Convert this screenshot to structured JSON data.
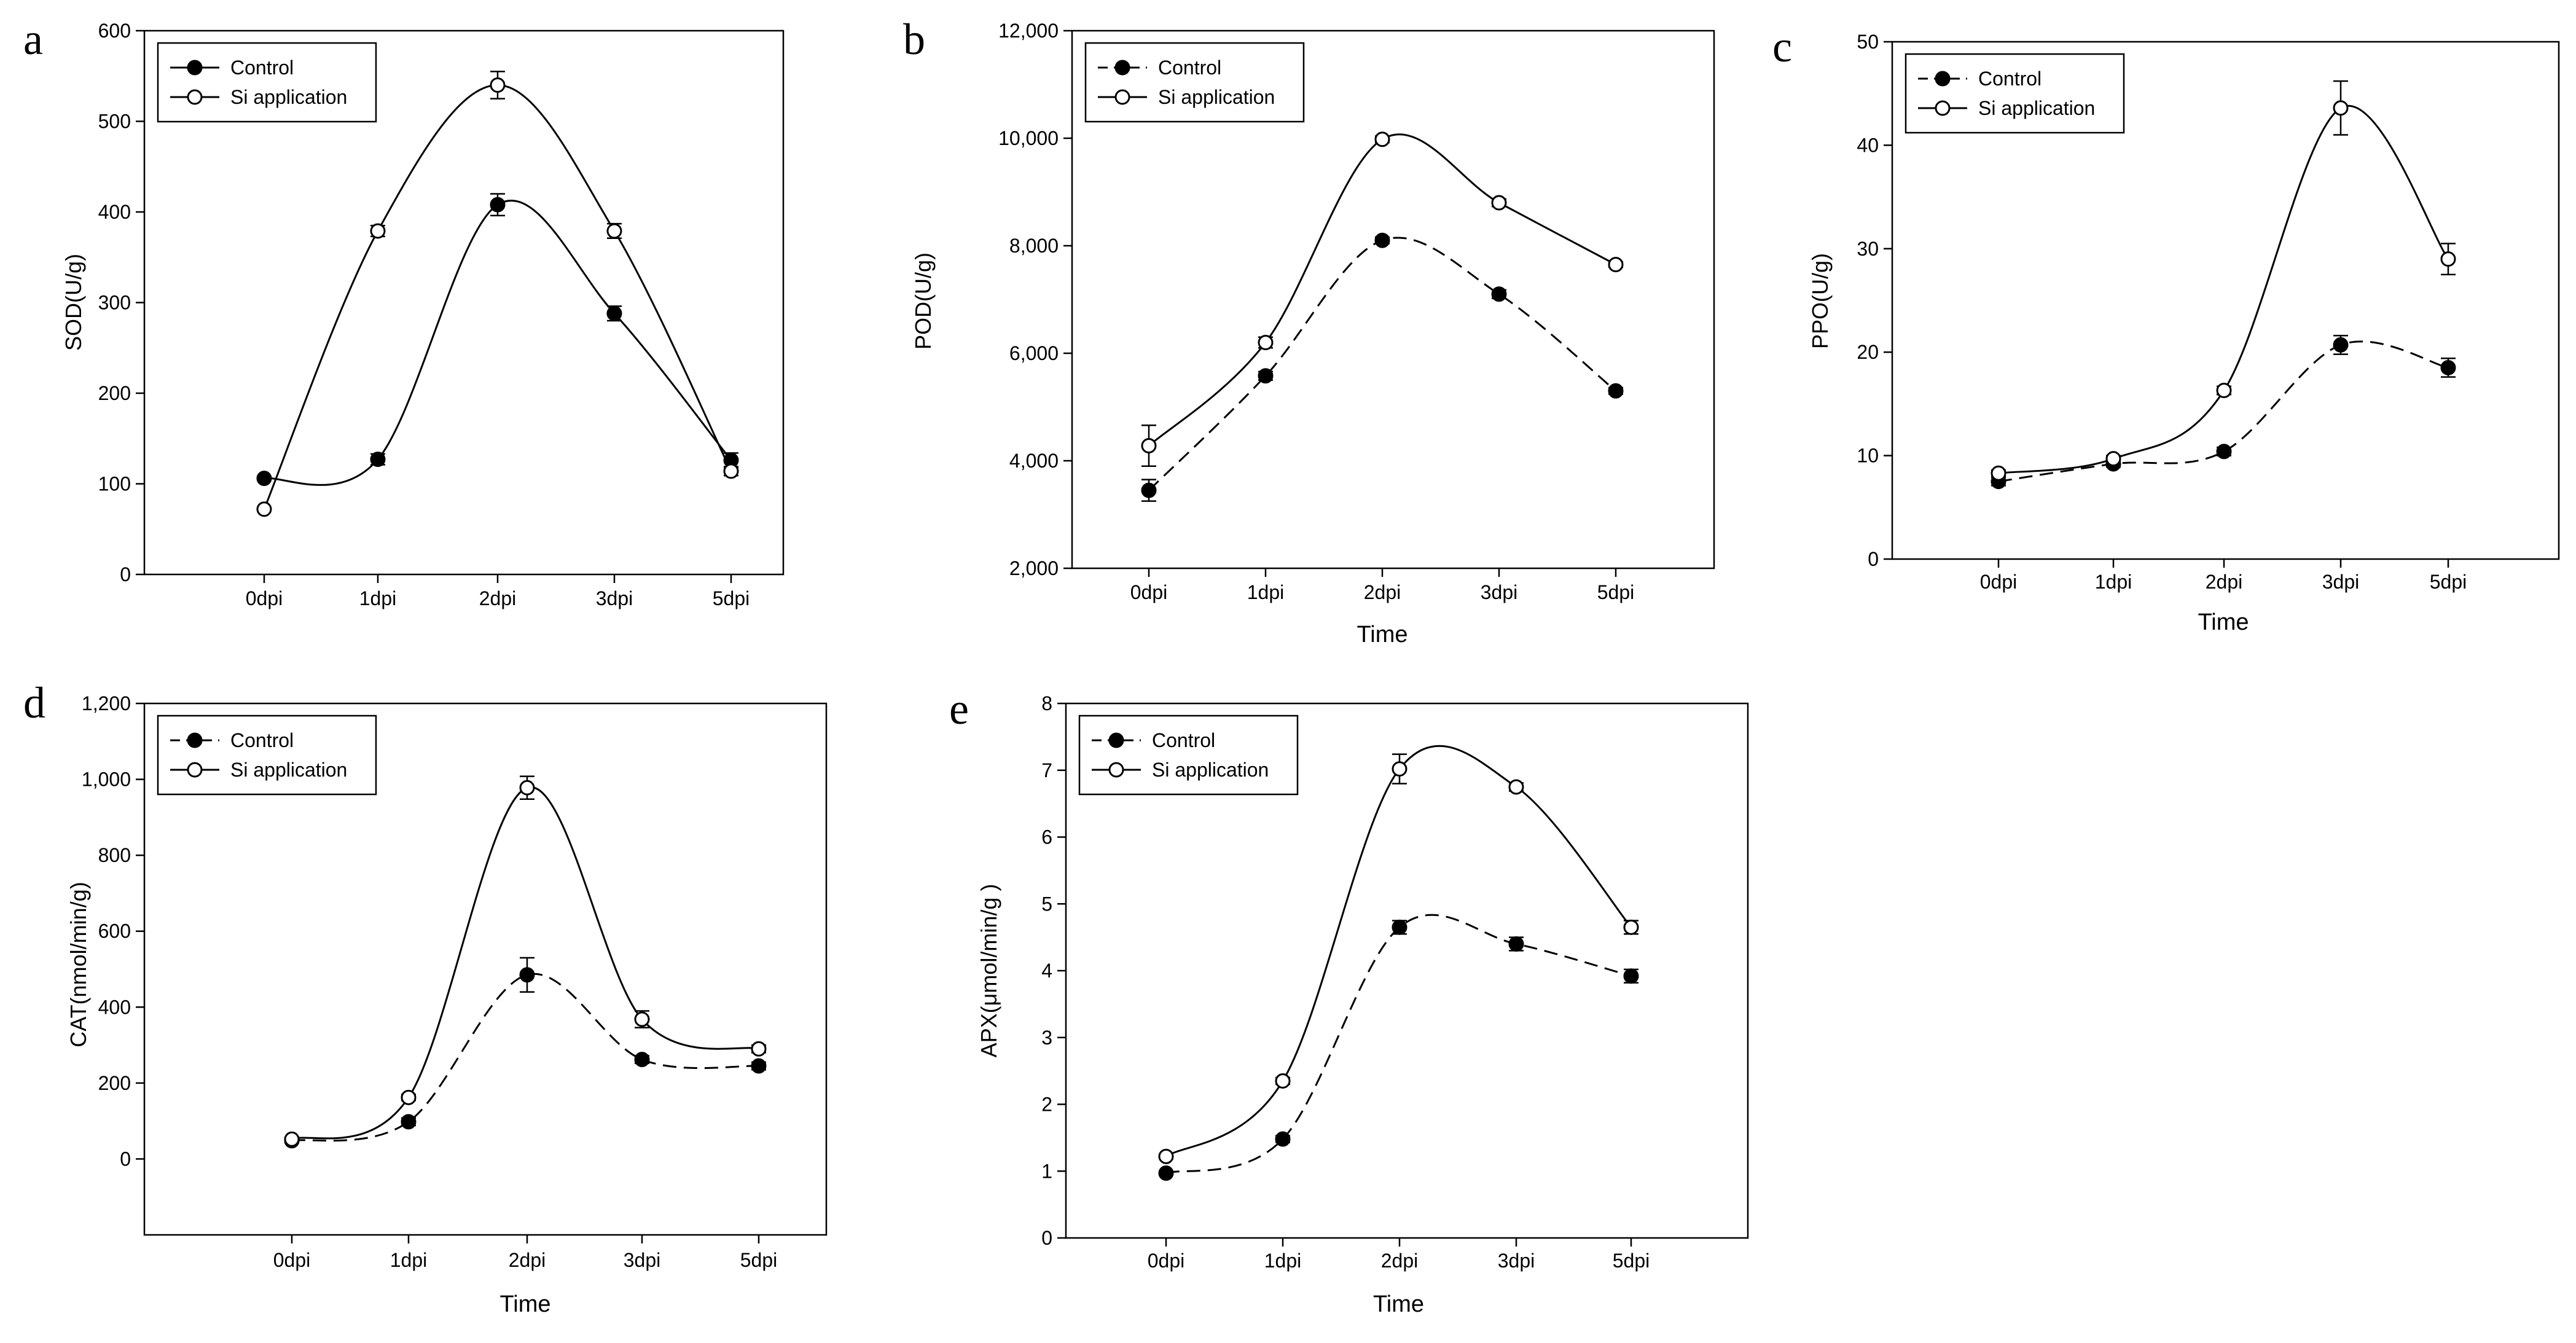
{
  "figure": {
    "background": "#ffffff",
    "ink_color": "#000000"
  },
  "legend": {
    "control_label": "Control",
    "si_label": "Si application"
  },
  "chart_data": [
    {
      "panel": "a",
      "type": "line",
      "title": "",
      "xlabel": "",
      "ylabel": "SOD(U/g)",
      "ylim": [
        0,
        600
      ],
      "yticks": [
        "0",
        "100",
        "200",
        "300",
        "400",
        "500",
        "600"
      ],
      "categories": [
        "0dpi",
        "1dpi",
        "2dpi",
        "3dpi",
        "5dpi"
      ],
      "legend_position": "top-left",
      "series": [
        {
          "name": "Control",
          "marker": "filled-circle",
          "line": "solid",
          "values": [
            106,
            127,
            408,
            288,
            126
          ],
          "errors": [
            0,
            6,
            12,
            8,
            8
          ]
        },
        {
          "name": "Si application",
          "marker": "open-circle",
          "line": "solid",
          "values": [
            72,
            379,
            540,
            379,
            114
          ],
          "errors": [
            0,
            6,
            15,
            8,
            5
          ]
        }
      ]
    },
    {
      "panel": "b",
      "type": "line",
      "title": "",
      "xlabel": "Time",
      "ylabel": "POD(U/g)",
      "ylim": [
        2000,
        12000
      ],
      "yticks": [
        "2,000",
        "4,000",
        "6,000",
        "8,000",
        "10,000",
        "12,000"
      ],
      "categories": [
        "0dpi",
        "1dpi",
        "2dpi",
        "3dpi",
        "5dpi"
      ],
      "legend_position": "top-left",
      "series": [
        {
          "name": "Control",
          "marker": "filled-circle",
          "line": "dashed",
          "values": [
            3450,
            5580,
            8100,
            7100,
            5300
          ],
          "errors": [
            200,
            80,
            60,
            80,
            60
          ]
        },
        {
          "name": "Si application",
          "marker": "open-circle",
          "line": "solid",
          "values": [
            4280,
            6200,
            9980,
            8800,
            7650
          ],
          "errors": [
            380,
            100,
            60,
            70,
            50
          ]
        }
      ]
    },
    {
      "panel": "c",
      "type": "line",
      "title": "",
      "xlabel": "Time",
      "ylabel": "PPO(U/g)",
      "ylim": [
        0,
        50
      ],
      "yticks": [
        "0",
        "10",
        "20",
        "30",
        "40",
        "50"
      ],
      "categories": [
        "0dpi",
        "1dpi",
        "2dpi",
        "3dpi",
        "5dpi"
      ],
      "legend_position": "top-left",
      "series": [
        {
          "name": "Control",
          "marker": "filled-circle",
          "line": "dashed",
          "values": [
            7.5,
            9.2,
            10.4,
            20.7,
            18.5
          ],
          "errors": [
            0.4,
            0.3,
            0.4,
            0.9,
            0.9
          ]
        },
        {
          "name": "Si application",
          "marker": "open-circle",
          "line": "solid",
          "values": [
            8.3,
            9.7,
            16.3,
            43.6,
            29.0
          ],
          "errors": [
            0.3,
            0.3,
            0.4,
            2.6,
            1.5
          ]
        }
      ]
    },
    {
      "panel": "d",
      "type": "line",
      "title": "",
      "xlabel": "Time",
      "ylabel": "CAT(nmol/min/g)",
      "ylim": [
        -200,
        1200
      ],
      "yticks": [
        "0",
        "200",
        "400",
        "600",
        "800",
        "1,000",
        "1,200"
      ],
      "categories": [
        "0dpi",
        "1dpi",
        "2dpi",
        "3dpi",
        "5dpi"
      ],
      "legend_position": "top-left",
      "series": [
        {
          "name": "Control",
          "marker": "filled-circle",
          "line": "dashed",
          "values": [
            48,
            98,
            485,
            262,
            245
          ],
          "errors": [
            5,
            10,
            45,
            10,
            10
          ]
        },
        {
          "name": "Si application",
          "marker": "open-circle",
          "line": "solid",
          "values": [
            52,
            162,
            978,
            368,
            290
          ],
          "errors": [
            5,
            8,
            30,
            22,
            10
          ]
        }
      ]
    },
    {
      "panel": "e",
      "type": "line",
      "title": "",
      "xlabel": "Time",
      "ylabel": "APX(μmol/min/g )",
      "ylim": [
        0,
        8
      ],
      "yticks": [
        "0",
        "1",
        "2",
        "3",
        "4",
        "5",
        "6",
        "7",
        "8"
      ],
      "categories": [
        "0dpi",
        "1dpi",
        "2dpi",
        "3dpi",
        "5dpi"
      ],
      "legend_position": "top-left",
      "series": [
        {
          "name": "Control",
          "marker": "filled-circle",
          "line": "dashed",
          "values": [
            0.97,
            1.48,
            4.65,
            4.4,
            3.92
          ],
          "errors": [
            0.03,
            0.05,
            0.1,
            0.1,
            0.1
          ]
        },
        {
          "name": "Si application",
          "marker": "open-circle",
          "line": "solid",
          "values": [
            1.22,
            2.35,
            7.02,
            6.75,
            4.65
          ],
          "errors": [
            0.03,
            0.05,
            0.22,
            0.06,
            0.1
          ]
        }
      ]
    }
  ]
}
